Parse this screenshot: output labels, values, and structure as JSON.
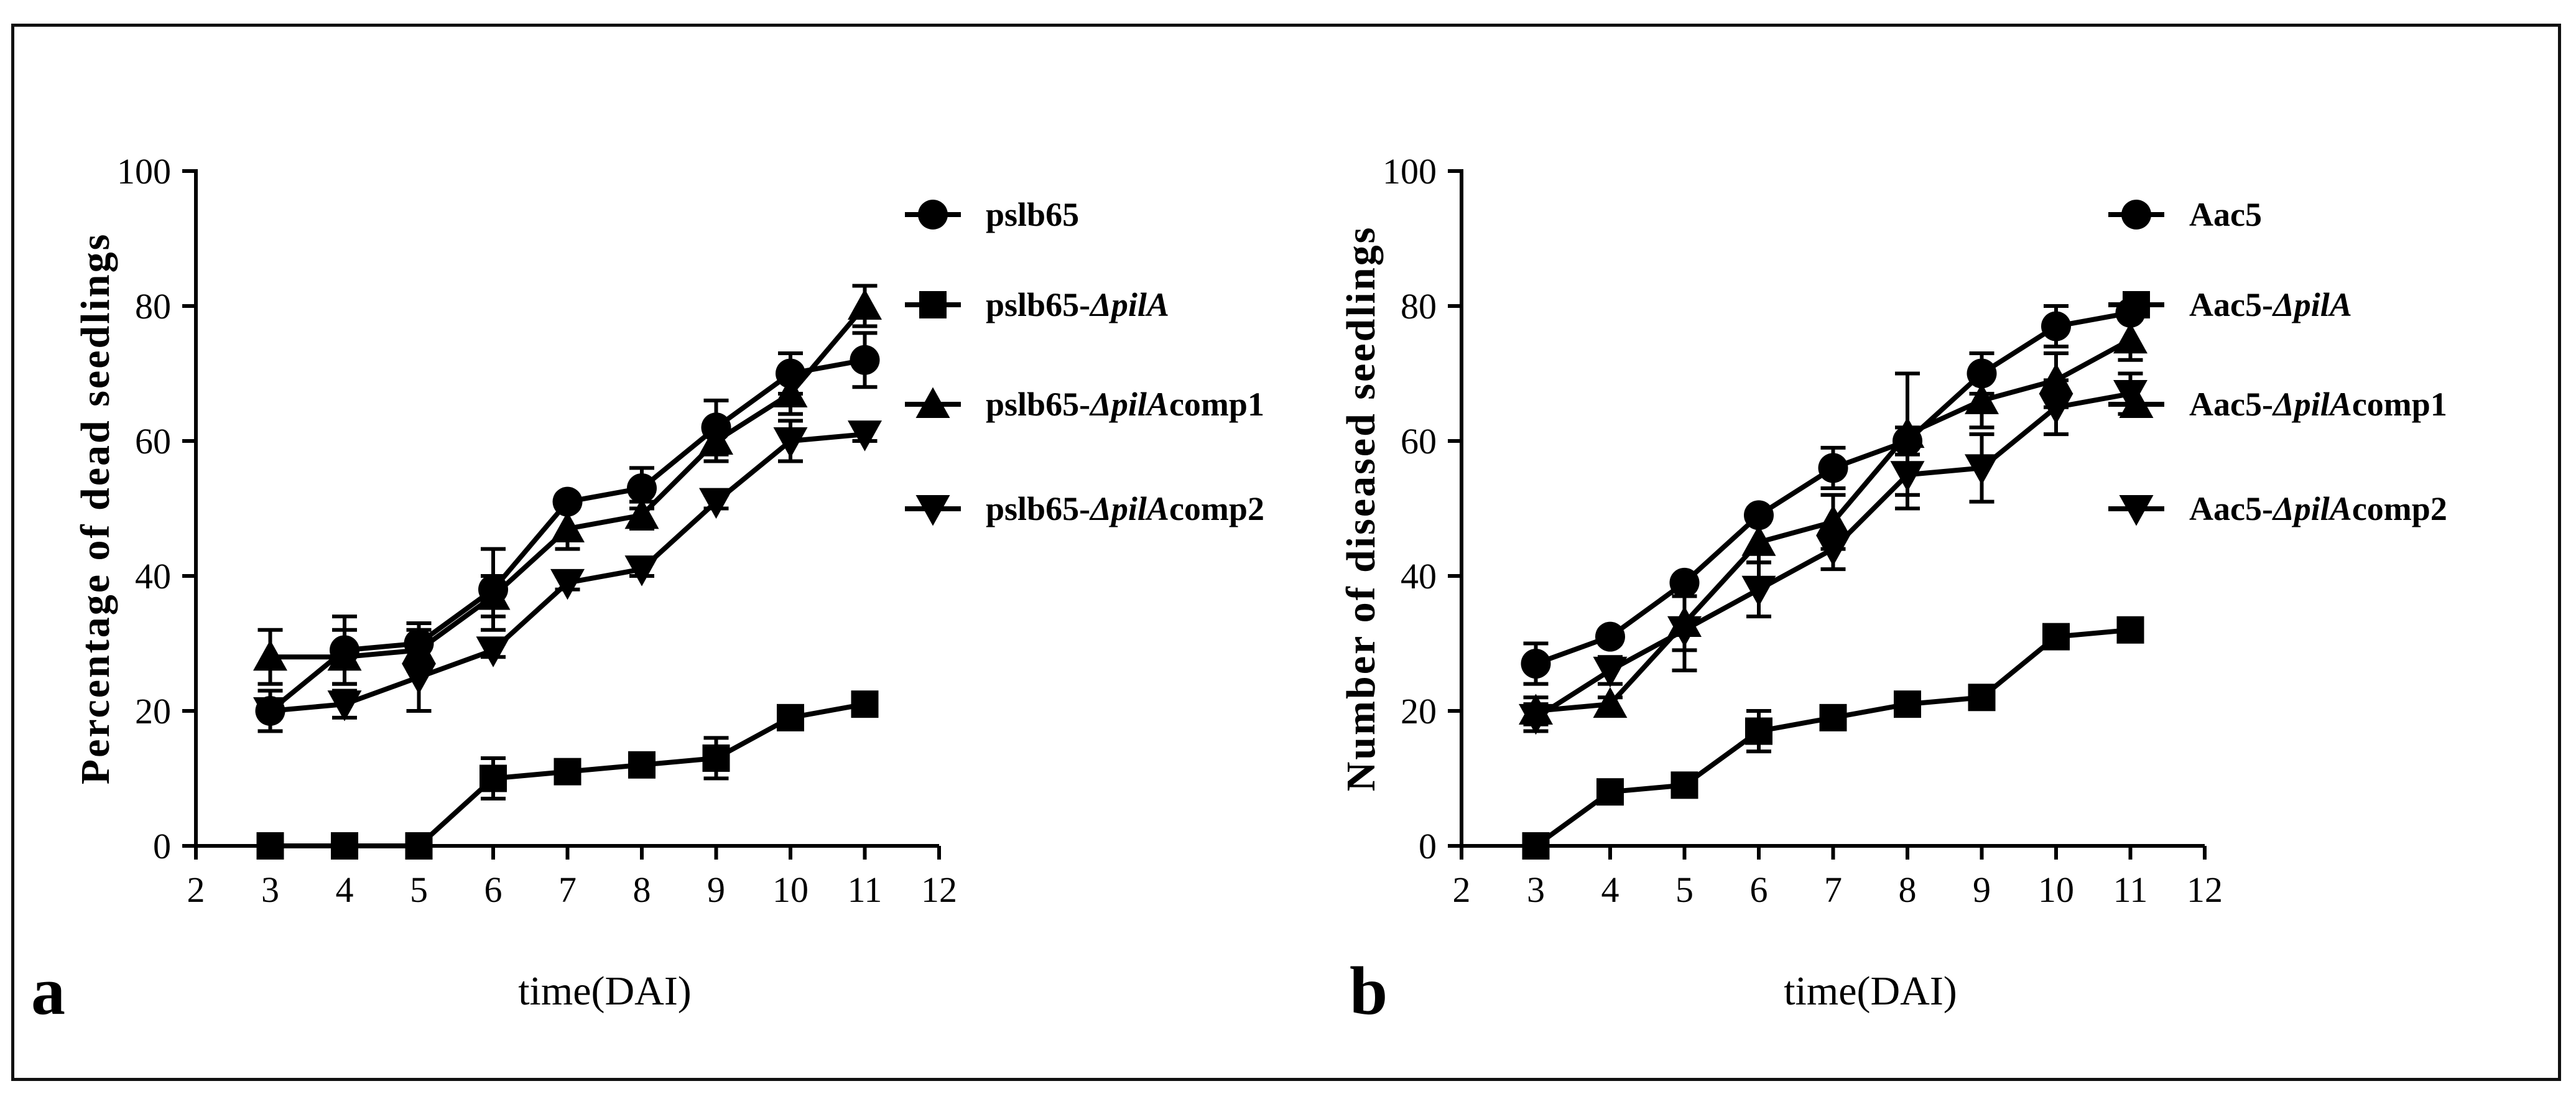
{
  "chart_data": [
    {
      "type": "line",
      "panel_label": "a",
      "title": "",
      "xlabel": "time(DAI)",
      "ylabel": "Percentage of dead seedlings",
      "xlim": [
        2,
        12
      ],
      "ylim": [
        0,
        100
      ],
      "xticks": [
        2,
        3,
        4,
        5,
        6,
        7,
        8,
        9,
        10,
        11,
        12
      ],
      "yticks": [
        0,
        20,
        40,
        60,
        80,
        100
      ],
      "x": [
        3,
        4,
        5,
        6,
        7,
        8,
        9,
        10,
        11
      ],
      "legend_position": "right",
      "series": [
        {
          "name": "pslb65",
          "base": "pslb65",
          "italic": "",
          "suffix": "",
          "marker": "circle",
          "values": [
            20,
            29,
            30,
            38,
            51,
            53,
            62,
            70,
            72
          ],
          "errors": [
            3,
            5,
            3,
            6,
            1,
            3,
            4,
            3,
            4
          ]
        },
        {
          "name": "pslb65-ΔpilA",
          "base": "pslb65-",
          "italic": "ΔpilA",
          "suffix": "",
          "marker": "square",
          "values": [
            0,
            0,
            0,
            10,
            11,
            12,
            13,
            19,
            21
          ],
          "errors": [
            0,
            0,
            0,
            3,
            1,
            1,
            3,
            1,
            1
          ]
        },
        {
          "name": "pslb65-ΔpilAcomp1",
          "base": "pslb65-",
          "italic": "ΔpilA",
          "suffix": "comp1",
          "marker": "triangle-up",
          "values": [
            28,
            28,
            29,
            37,
            47,
            49,
            60,
            67,
            80
          ],
          "errors": [
            4,
            4,
            3,
            3,
            3,
            2,
            3,
            3,
            3
          ]
        },
        {
          "name": "pslb65-ΔpilAcomp2",
          "base": "pslb65-",
          "italic": "ΔpilA",
          "suffix": "comp2",
          "marker": "triangle-down",
          "values": [
            20,
            21,
            25,
            29,
            39,
            41,
            51,
            60,
            61
          ],
          "errors": [
            3,
            2,
            5,
            1,
            1,
            1,
            1,
            3,
            1
          ]
        }
      ]
    },
    {
      "type": "line",
      "panel_label": "b",
      "title": "",
      "xlabel": "time(DAI)",
      "ylabel": "Number of diseased seedlings",
      "xlim": [
        2,
        12
      ],
      "ylim": [
        0,
        100
      ],
      "xticks": [
        2,
        3,
        4,
        5,
        6,
        7,
        8,
        9,
        10,
        11,
        12
      ],
      "yticks": [
        0,
        20,
        40,
        60,
        80,
        100
      ],
      "x": [
        3,
        4,
        5,
        6,
        7,
        8,
        9,
        10,
        11
      ],
      "legend_position": "right",
      "series": [
        {
          "name": "Aac5",
          "base": "Aac5",
          "italic": "",
          "suffix": "",
          "marker": "circle",
          "values": [
            27,
            31,
            39,
            49,
            56,
            60,
            70,
            77,
            79
          ],
          "errors": [
            3,
            1,
            1,
            1,
            3,
            2,
            3,
            3,
            1
          ]
        },
        {
          "name": "Aac5-ΔpilA",
          "base": "Aac5-",
          "italic": "ΔpilA",
          "suffix": "",
          "marker": "square",
          "values": [
            0,
            8,
            9,
            17,
            19,
            21,
            22,
            31,
            32
          ],
          "errors": [
            0,
            1,
            1,
            3,
            1,
            1,
            1,
            1,
            1
          ]
        },
        {
          "name": "Aac5-ΔpilAcomp1",
          "base": "Aac5-",
          "italic": "ΔpilA",
          "suffix": "comp1",
          "marker": "triangle-up",
          "values": [
            20,
            21,
            33,
            45,
            48,
            61,
            66,
            69,
            75
          ],
          "errors": [
            2,
            1,
            4,
            3,
            4,
            9,
            4,
            4,
            3
          ]
        },
        {
          "name": "Aac5-ΔpilAcomp2",
          "base": "Aac5-",
          "italic": "ΔpilA",
          "suffix": "comp2",
          "marker": "triangle-down",
          "values": [
            19,
            26,
            32,
            38,
            44,
            55,
            56,
            65,
            67
          ],
          "errors": [
            2,
            2,
            6,
            4,
            3,
            5,
            5,
            4,
            3
          ]
        }
      ]
    }
  ]
}
